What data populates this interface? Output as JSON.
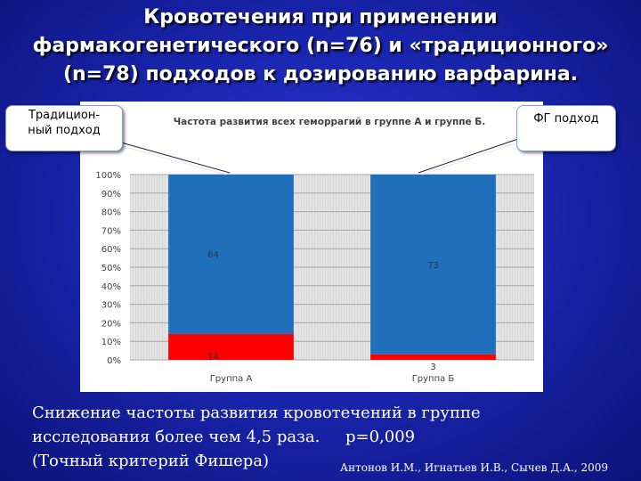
{
  "slide": {
    "title_lines": [
      "Кровотечения при применении",
      "фармакогенетического (n=76) и «традиционного»",
      "(n=78) подходов к дозированию варфарина."
    ],
    "callout_left": [
      "Традицион-",
      "ный подход"
    ],
    "callout_right": "ФГ подход",
    "note_lines": [
      "Снижение частоты развития кровотечений в группе",
      "исследования более чем 4,5 раза.     p=0,009",
      "(Точный критерий Фишера)"
    ],
    "citation": "Антонов И.М., Игнатьев И.В., Сычев Д.А., 2009",
    "colors": {
      "background": "#1a26b0",
      "blue_bar": "#1f6fba",
      "red_bar": "#ff0000"
    }
  },
  "chart_data": {
    "type": "bar",
    "stacked": true,
    "title": "Частота развития всех геморрагий в группе А и группе Б.",
    "categories": [
      "Группа А",
      "Группа Б"
    ],
    "series": [
      {
        "color": "#ff0000",
        "values": [
          14,
          3
        ],
        "labels": [
          "14",
          "3"
        ]
      },
      {
        "color": "#1f6fba",
        "values": [
          64,
          73
        ],
        "labels": [
          "64",
          "73"
        ]
      }
    ],
    "ylim": [
      0,
      100
    ],
    "yticks": [
      "0%",
      "10%",
      "20%",
      "30%",
      "40%",
      "50%",
      "60%",
      "70%",
      "80%",
      "90%",
      "100%"
    ],
    "grid": true
  }
}
